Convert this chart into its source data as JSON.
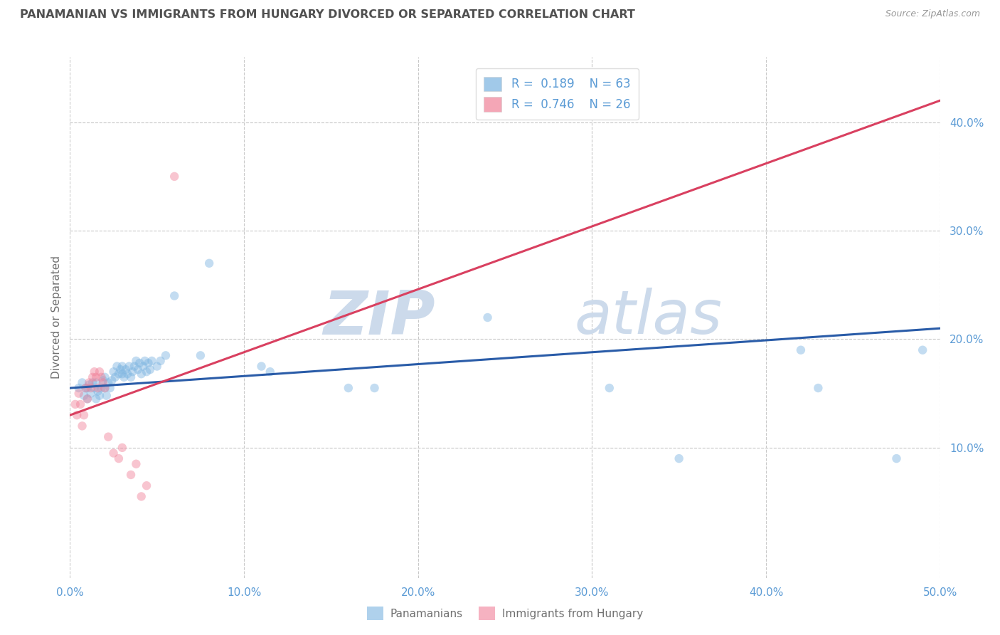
{
  "title": "PANAMANIAN VS IMMIGRANTS FROM HUNGARY DIVORCED OR SEPARATED CORRELATION CHART",
  "source_text": "Source: ZipAtlas.com",
  "ylabel": "Divorced or Separated",
  "xlim": [
    0.0,
    0.5
  ],
  "ylim": [
    -0.02,
    0.46
  ],
  "xticks": [
    0.0,
    0.1,
    0.2,
    0.3,
    0.4,
    0.5
  ],
  "xticklabels": [
    "0.0%",
    "10.0%",
    "20.0%",
    "30.0%",
    "40.0%",
    "50.0%"
  ],
  "yticks": [
    0.1,
    0.2,
    0.3,
    0.4
  ],
  "yticklabels": [
    "10.0%",
    "20.0%",
    "30.0%",
    "40.0%"
  ],
  "blue_scatter": [
    [
      0.005,
      0.155
    ],
    [
      0.007,
      0.16
    ],
    [
      0.008,
      0.148
    ],
    [
      0.009,
      0.155
    ],
    [
      0.01,
      0.145
    ],
    [
      0.01,
      0.155
    ],
    [
      0.011,
      0.158
    ],
    [
      0.012,
      0.15
    ],
    [
      0.013,
      0.16
    ],
    [
      0.014,
      0.155
    ],
    [
      0.015,
      0.145
    ],
    [
      0.015,
      0.16
    ],
    [
      0.016,
      0.152
    ],
    [
      0.017,
      0.148
    ],
    [
      0.018,
      0.155
    ],
    [
      0.019,
      0.162
    ],
    [
      0.02,
      0.165
    ],
    [
      0.02,
      0.155
    ],
    [
      0.021,
      0.148
    ],
    [
      0.022,
      0.16
    ],
    [
      0.023,
      0.155
    ],
    [
      0.024,
      0.162
    ],
    [
      0.025,
      0.17
    ],
    [
      0.026,
      0.165
    ],
    [
      0.027,
      0.175
    ],
    [
      0.028,
      0.168
    ],
    [
      0.029,
      0.172
    ],
    [
      0.03,
      0.168
    ],
    [
      0.03,
      0.175
    ],
    [
      0.031,
      0.165
    ],
    [
      0.032,
      0.172
    ],
    [
      0.033,
      0.168
    ],
    [
      0.034,
      0.175
    ],
    [
      0.035,
      0.165
    ],
    [
      0.036,
      0.17
    ],
    [
      0.037,
      0.175
    ],
    [
      0.038,
      0.18
    ],
    [
      0.039,
      0.172
    ],
    [
      0.04,
      0.178
    ],
    [
      0.041,
      0.168
    ],
    [
      0.042,
      0.175
    ],
    [
      0.043,
      0.18
    ],
    [
      0.044,
      0.17
    ],
    [
      0.045,
      0.178
    ],
    [
      0.046,
      0.172
    ],
    [
      0.047,
      0.18
    ],
    [
      0.05,
      0.175
    ],
    [
      0.052,
      0.18
    ],
    [
      0.055,
      0.185
    ],
    [
      0.06,
      0.24
    ],
    [
      0.075,
      0.185
    ],
    [
      0.08,
      0.27
    ],
    [
      0.11,
      0.175
    ],
    [
      0.115,
      0.17
    ],
    [
      0.16,
      0.155
    ],
    [
      0.175,
      0.155
    ],
    [
      0.24,
      0.22
    ],
    [
      0.31,
      0.155
    ],
    [
      0.35,
      0.09
    ],
    [
      0.42,
      0.19
    ],
    [
      0.43,
      0.155
    ],
    [
      0.475,
      0.09
    ],
    [
      0.49,
      0.19
    ]
  ],
  "pink_scatter": [
    [
      0.003,
      0.14
    ],
    [
      0.004,
      0.13
    ],
    [
      0.005,
      0.15
    ],
    [
      0.006,
      0.14
    ],
    [
      0.007,
      0.12
    ],
    [
      0.008,
      0.13
    ],
    [
      0.009,
      0.155
    ],
    [
      0.01,
      0.145
    ],
    [
      0.011,
      0.16
    ],
    [
      0.012,
      0.155
    ],
    [
      0.013,
      0.165
    ],
    [
      0.014,
      0.17
    ],
    [
      0.015,
      0.165
    ],
    [
      0.016,
      0.155
    ],
    [
      0.017,
      0.17
    ],
    [
      0.018,
      0.165
    ],
    [
      0.019,
      0.16
    ],
    [
      0.02,
      0.155
    ],
    [
      0.022,
      0.11
    ],
    [
      0.025,
      0.095
    ],
    [
      0.028,
      0.09
    ],
    [
      0.03,
      0.1
    ],
    [
      0.035,
      0.075
    ],
    [
      0.038,
      0.085
    ],
    [
      0.041,
      0.055
    ],
    [
      0.044,
      0.065
    ],
    [
      0.06,
      0.35
    ]
  ],
  "blue_line": {
    "x": [
      0.0,
      0.5
    ],
    "y": [
      0.155,
      0.21
    ]
  },
  "pink_line": {
    "x": [
      0.0,
      0.5
    ],
    "y": [
      0.13,
      0.42
    ]
  },
  "scatter_size": 80,
  "scatter_alpha": 0.45,
  "line_width": 2.2,
  "blue_color": "#7ab3e0",
  "pink_color": "#f08098",
  "blue_line_color": "#2a5ca8",
  "pink_line_color": "#d94060",
  "grid_color": "#c8c8c8",
  "watermark_zip": "ZIP",
  "watermark_atlas": "atlas",
  "watermark_color": "#ccdaeb",
  "watermark_fontsize": 62,
  "background_color": "#ffffff",
  "title_color": "#505050",
  "title_fontsize": 11.5,
  "axis_label_color": "#707070",
  "tick_label_color": "#5b9bd5",
  "legend_r_color": "#5b9bd5",
  "legend_label_color": "#707070"
}
